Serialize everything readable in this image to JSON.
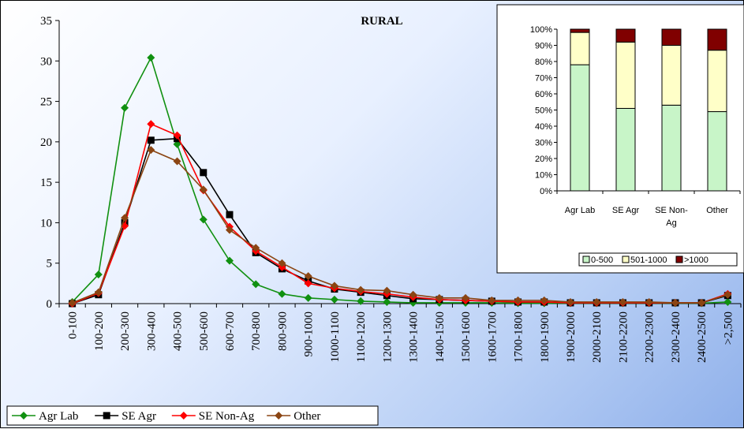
{
  "chart_data": [
    {
      "type": "line",
      "title": "RURAL",
      "categories": [
        "0-100",
        "100-200",
        "200-300",
        "300-400",
        "400-500",
        "500-600",
        "600-700",
        "700-800",
        "800-900",
        "900-1000",
        "1000-1100",
        "1100-1200",
        "1200-1300",
        "1300-1400",
        "1400-1500",
        "1500-1600",
        "1600-1700",
        "1700-1800",
        "1800-1900",
        "1900-2000",
        "2000-2100",
        "2100-2200",
        "2200-2300",
        "2300-2400",
        "2400-2500",
        ">2,500"
      ],
      "ylim": [
        0,
        35
      ],
      "yticks": [
        0,
        5,
        10,
        15,
        20,
        25,
        30,
        35
      ],
      "legend_position": "bottom-left",
      "series": [
        {
          "name": "Agr Lab",
          "color": "#109010",
          "marker": "diamond",
          "values": [
            0.2,
            3.6,
            24.2,
            30.4,
            19.7,
            10.4,
            5.3,
            2.4,
            1.2,
            0.7,
            0.5,
            0.3,
            0.2,
            0.1,
            0.1,
            0.1,
            0.1,
            0.05,
            0.05,
            0.05,
            0.05,
            0.05,
            0.05,
            0.05,
            0.05,
            0.2
          ]
        },
        {
          "name": "SE Agr",
          "color": "#000000",
          "marker": "square",
          "values": [
            0.0,
            1.1,
            10.0,
            20.2,
            20.4,
            16.2,
            11.0,
            6.3,
            4.3,
            2.8,
            1.8,
            1.4,
            1.0,
            0.6,
            0.5,
            0.4,
            0.3,
            0.2,
            0.2,
            0.1,
            0.1,
            0.1,
            0.1,
            0.1,
            0.1,
            1.0
          ]
        },
        {
          "name": "SE Non-Ag",
          "color": "#ff0000",
          "marker": "diamond",
          "values": [
            0.0,
            1.3,
            9.6,
            22.2,
            20.8,
            14.0,
            9.5,
            6.5,
            4.5,
            2.5,
            1.9,
            1.5,
            1.2,
            0.8,
            0.5,
            0.4,
            0.3,
            0.2,
            0.2,
            0.1,
            0.1,
            0.1,
            0.1,
            0.1,
            0.1,
            1.2
          ]
        },
        {
          "name": "Other",
          "color": "#8b4513",
          "marker": "diamond",
          "values": [
            0.1,
            1.4,
            10.6,
            19.0,
            17.6,
            14.1,
            9.1,
            6.9,
            5.0,
            3.4,
            2.2,
            1.7,
            1.6,
            1.1,
            0.7,
            0.7,
            0.4,
            0.4,
            0.4,
            0.2,
            0.2,
            0.2,
            0.2,
            0.1,
            0.1,
            1.1
          ]
        }
      ]
    },
    {
      "type": "bar",
      "stacked": true,
      "percent": true,
      "categories": [
        "Agr Lab",
        "SE Agr",
        "SE Non-Ag",
        "Other"
      ],
      "yticks": [
        "0%",
        "10%",
        "20%",
        "30%",
        "40%",
        "50%",
        "60%",
        "70%",
        "80%",
        "90%",
        "100%"
      ],
      "legend_position": "bottom",
      "series": [
        {
          "name": "0-500",
          "color": "#c8f5c8",
          "values": [
            78,
            51,
            53,
            49
          ]
        },
        {
          "name": "501-1000",
          "color": "#ffffc8",
          "values": [
            20,
            41,
            37,
            38
          ]
        },
        {
          "name": ">1000",
          "color": "#800000",
          "values": [
            2,
            8,
            10,
            13
          ]
        }
      ]
    }
  ]
}
